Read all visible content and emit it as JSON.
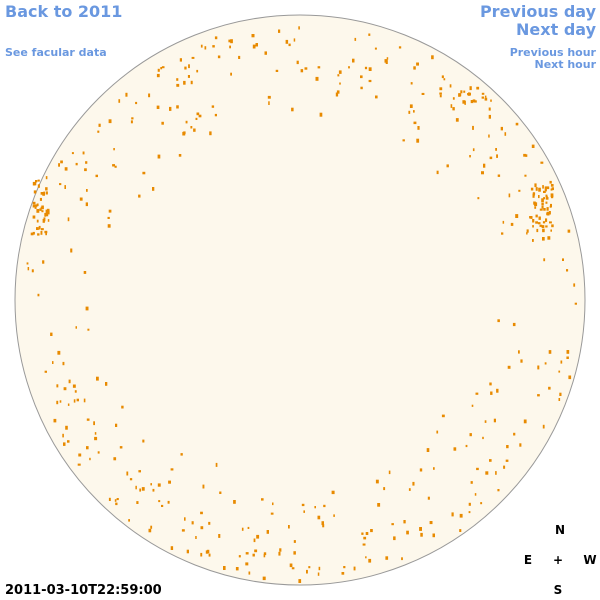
{
  "links": {
    "back": "Back to 2011",
    "facular": "See facular data",
    "previous_day": "Previous day",
    "next_day": "Next day",
    "previous_hour": "Previous hour",
    "next_hour": "Next hour"
  },
  "compass": {
    "north": "N",
    "east": "E",
    "center": "+",
    "west": "W",
    "south": "S"
  },
  "timestamp": "2011-03-10T22:59:00"
}
